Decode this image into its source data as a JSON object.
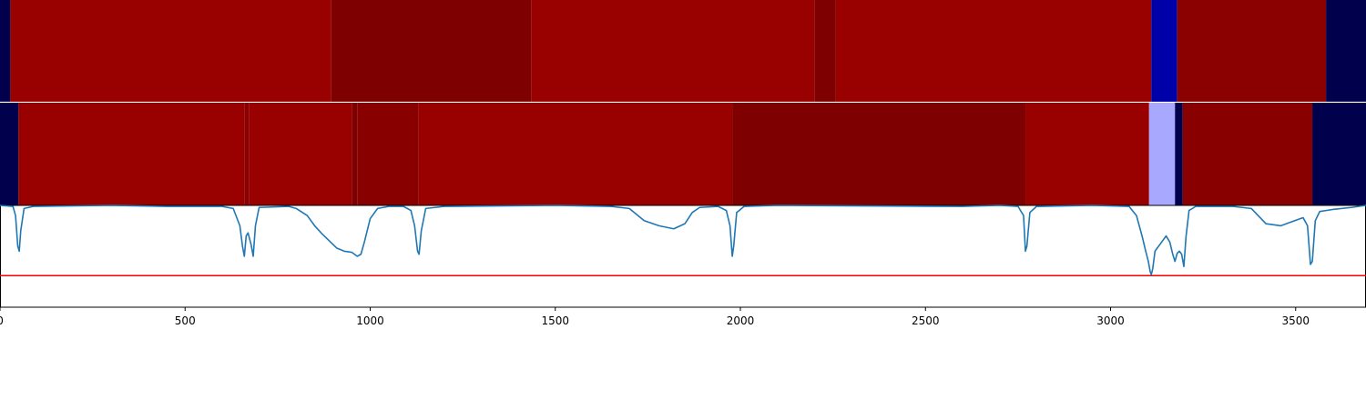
{
  "chart_data": {
    "type": "heatmap",
    "xlim": [
      0,
      3690
    ],
    "xticks": [
      0,
      500,
      1000,
      1500,
      2000,
      2500,
      3000,
      3500
    ],
    "xtick_labels": [
      "0",
      "500",
      "1000",
      "1500",
      "2000",
      "2500",
      "3000",
      "3500"
    ],
    "strip_rows": [
      {
        "segments": [
          {
            "start": 0,
            "end": 28,
            "color": "#00004c"
          },
          {
            "start": 28,
            "end": 895,
            "color": "#990000"
          },
          {
            "start": 895,
            "end": 1435,
            "color": "#7f0000"
          },
          {
            "start": 1435,
            "end": 2200,
            "color": "#990000"
          },
          {
            "start": 2200,
            "end": 2258,
            "color": "#7f0000"
          },
          {
            "start": 2258,
            "end": 3110,
            "color": "#990000"
          },
          {
            "start": 3110,
            "end": 3180,
            "color": "#0000a8"
          },
          {
            "start": 3180,
            "end": 3582,
            "color": "#8b0000"
          },
          {
            "start": 3582,
            "end": 3690,
            "color": "#00004c"
          }
        ]
      },
      {
        "segments": [
          {
            "start": 0,
            "end": 50,
            "color": "#00004c"
          },
          {
            "start": 50,
            "end": 660,
            "color": "#990000"
          },
          {
            "start": 660,
            "end": 672,
            "color": "#8b0000"
          },
          {
            "start": 672,
            "end": 950,
            "color": "#990000"
          },
          {
            "start": 950,
            "end": 965,
            "color": "#7f0000"
          },
          {
            "start": 965,
            "end": 1130,
            "color": "#880000"
          },
          {
            "start": 1130,
            "end": 1978,
            "color": "#990000"
          },
          {
            "start": 1978,
            "end": 2770,
            "color": "#7f0000"
          },
          {
            "start": 2770,
            "end": 3104,
            "color": "#990000"
          },
          {
            "start": 3104,
            "end": 3174,
            "color": "#a8a8ff"
          },
          {
            "start": 3174,
            "end": 3195,
            "color": "#00004c"
          },
          {
            "start": 3195,
            "end": 3545,
            "color": "#880000"
          },
          {
            "start": 3545,
            "end": 3690,
            "color": "#00004c"
          }
        ]
      }
    ],
    "line_series": {
      "color": "#1f77b4",
      "ylim": [
        0,
        1
      ],
      "points": [
        [
          0,
          1.0
        ],
        [
          35,
          0.99
        ],
        [
          42,
          0.9
        ],
        [
          48,
          0.6
        ],
        [
          52,
          0.55
        ],
        [
          56,
          0.75
        ],
        [
          65,
          0.97
        ],
        [
          90,
          0.99
        ],
        [
          300,
          1.0
        ],
        [
          450,
          0.99
        ],
        [
          600,
          0.99
        ],
        [
          630,
          0.97
        ],
        [
          648,
          0.8
        ],
        [
          655,
          0.6
        ],
        [
          660,
          0.5
        ],
        [
          665,
          0.7
        ],
        [
          670,
          0.73
        ],
        [
          678,
          0.62
        ],
        [
          684,
          0.5
        ],
        [
          690,
          0.8
        ],
        [
          700,
          0.98
        ],
        [
          780,
          0.99
        ],
        [
          800,
          0.97
        ],
        [
          830,
          0.9
        ],
        [
          850,
          0.8
        ],
        [
          870,
          0.72
        ],
        [
          890,
          0.65
        ],
        [
          910,
          0.58
        ],
        [
          930,
          0.55
        ],
        [
          950,
          0.54
        ],
        [
          965,
          0.5
        ],
        [
          975,
          0.52
        ],
        [
          985,
          0.65
        ],
        [
          1000,
          0.87
        ],
        [
          1020,
          0.97
        ],
        [
          1050,
          0.99
        ],
        [
          1090,
          0.99
        ],
        [
          1110,
          0.95
        ],
        [
          1120,
          0.8
        ],
        [
          1128,
          0.55
        ],
        [
          1132,
          0.52
        ],
        [
          1138,
          0.75
        ],
        [
          1150,
          0.97
        ],
        [
          1200,
          0.99
        ],
        [
          1500,
          1.0
        ],
        [
          1650,
          0.99
        ],
        [
          1700,
          0.97
        ],
        [
          1740,
          0.85
        ],
        [
          1780,
          0.8
        ],
        [
          1820,
          0.77
        ],
        [
          1850,
          0.82
        ],
        [
          1870,
          0.93
        ],
        [
          1890,
          0.98
        ],
        [
          1940,
          0.99
        ],
        [
          1962,
          0.95
        ],
        [
          1972,
          0.8
        ],
        [
          1978,
          0.5
        ],
        [
          1982,
          0.6
        ],
        [
          1990,
          0.93
        ],
        [
          2010,
          0.99
        ],
        [
          2100,
          1.0
        ],
        [
          2600,
          0.99
        ],
        [
          2700,
          1.0
        ],
        [
          2750,
          0.99
        ],
        [
          2765,
          0.9
        ],
        [
          2770,
          0.55
        ],
        [
          2774,
          0.6
        ],
        [
          2782,
          0.93
        ],
        [
          2800,
          0.99
        ],
        [
          2950,
          1.0
        ],
        [
          3050,
          0.99
        ],
        [
          3070,
          0.9
        ],
        [
          3085,
          0.7
        ],
        [
          3095,
          0.55
        ],
        [
          3102,
          0.45
        ],
        [
          3107,
          0.35
        ],
        [
          3110,
          0.32
        ],
        [
          3114,
          0.38
        ],
        [
          3120,
          0.55
        ],
        [
          3130,
          0.6
        ],
        [
          3140,
          0.65
        ],
        [
          3150,
          0.7
        ],
        [
          3160,
          0.64
        ],
        [
          3168,
          0.52
        ],
        [
          3174,
          0.45
        ],
        [
          3180,
          0.53
        ],
        [
          3186,
          0.55
        ],
        [
          3192,
          0.52
        ],
        [
          3198,
          0.4
        ],
        [
          3204,
          0.7
        ],
        [
          3212,
          0.95
        ],
        [
          3230,
          0.99
        ],
        [
          3330,
          0.99
        ],
        [
          3380,
          0.97
        ],
        [
          3420,
          0.82
        ],
        [
          3460,
          0.8
        ],
        [
          3490,
          0.84
        ],
        [
          3520,
          0.88
        ],
        [
          3532,
          0.8
        ],
        [
          3540,
          0.42
        ],
        [
          3545,
          0.45
        ],
        [
          3553,
          0.85
        ],
        [
          3565,
          0.94
        ],
        [
          3600,
          0.96
        ],
        [
          3650,
          0.98
        ],
        [
          3690,
          1.0
        ]
      ]
    },
    "threshold": {
      "value": 0.31,
      "color": "#ff0000"
    }
  }
}
